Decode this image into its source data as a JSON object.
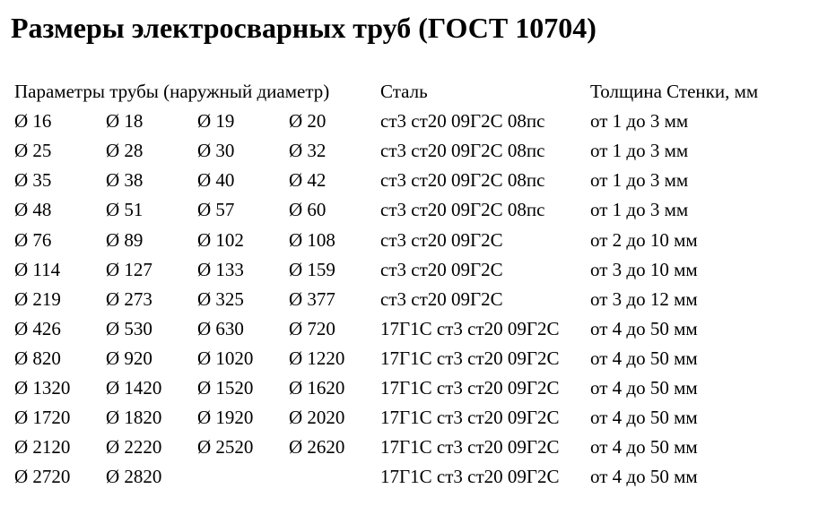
{
  "title": "Размеры электросварных труб (ГОСТ 10704)",
  "table": {
    "headers": {
      "params": "Параметры трубы (наружный диаметр)",
      "steel": "Сталь",
      "thickness": "Толщина Стенки, мм"
    },
    "rows": [
      {
        "d1": "Ø 16",
        "d2": "Ø 18",
        "d3": "Ø 19",
        "d4": "Ø 20",
        "steel": "ст3 ст20 09Г2С 08пс",
        "thickness": "от 1 до 3 мм"
      },
      {
        "d1": "Ø 25",
        "d2": "Ø 28",
        "d3": "Ø 30",
        "d4": "Ø 32",
        "steel": "ст3 ст20 09Г2С 08пс",
        "thickness": "от 1 до 3 мм"
      },
      {
        "d1": "Ø 35",
        "d2": "Ø 38",
        "d3": "Ø 40",
        "d4": "Ø 42",
        "steel": "ст3 ст20 09Г2С 08пс",
        "thickness": "от 1 до 3 мм"
      },
      {
        "d1": "Ø 48",
        "d2": "Ø 51",
        "d3": "Ø 57",
        "d4": "Ø 60",
        "steel": "ст3 ст20 09Г2С 08пс",
        "thickness": "от 1 до 3 мм"
      },
      {
        "d1": "Ø 76",
        "d2": "Ø 89",
        "d3": "Ø 102",
        "d4": "Ø 108",
        "steel": "ст3 ст20 09Г2С",
        "thickness": "от 2 до 10 мм"
      },
      {
        "d1": "Ø 114",
        "d2": "Ø 127",
        "d3": "Ø 133",
        "d4": "Ø 159",
        "steel": "ст3 ст20 09Г2С",
        "thickness": "от 3 до 10 мм"
      },
      {
        "d1": "Ø 219",
        "d2": "Ø 273",
        "d3": "Ø 325",
        "d4": "Ø 377",
        "steel": "ст3 ст20 09Г2С",
        "thickness": "от 3 до 12 мм"
      },
      {
        "d1": "Ø 426",
        "d2": "Ø 530",
        "d3": "Ø 630",
        "d4": "Ø 720",
        "steel": "17Г1С ст3 ст20 09Г2С",
        "thickness": "от 4 до 50 мм"
      },
      {
        "d1": "Ø 820",
        "d2": "Ø 920",
        "d3": "Ø 1020",
        "d4": "Ø 1220",
        "steel": "17Г1С ст3 ст20 09Г2С",
        "thickness": "от 4 до 50 мм"
      },
      {
        "d1": "Ø 1320",
        "d2": "Ø 1420",
        "d3": "Ø 1520",
        "d4": "Ø 1620",
        "steel": "17Г1С ст3 ст20 09Г2С",
        "thickness": "от 4 до 50 мм"
      },
      {
        "d1": "Ø 1720",
        "d2": "Ø 1820",
        "d3": "Ø 1920",
        "d4": "Ø 2020",
        "steel": "17Г1С ст3 ст20 09Г2С",
        "thickness": "от 4 до 50 мм"
      },
      {
        "d1": "Ø 2120",
        "d2": "Ø 2220",
        "d3": "Ø 2520",
        "d4": "Ø 2620",
        "steel": "17Г1С ст3 ст20 09Г2С",
        "thickness": "от 4 до 50 мм"
      },
      {
        "d1": "Ø 2720",
        "d2": "Ø 2820",
        "d3": "",
        "d4": "",
        "steel": "17Г1С ст3 ст20 09Г2С",
        "thickness": "от 4 до 50 мм"
      }
    ]
  }
}
